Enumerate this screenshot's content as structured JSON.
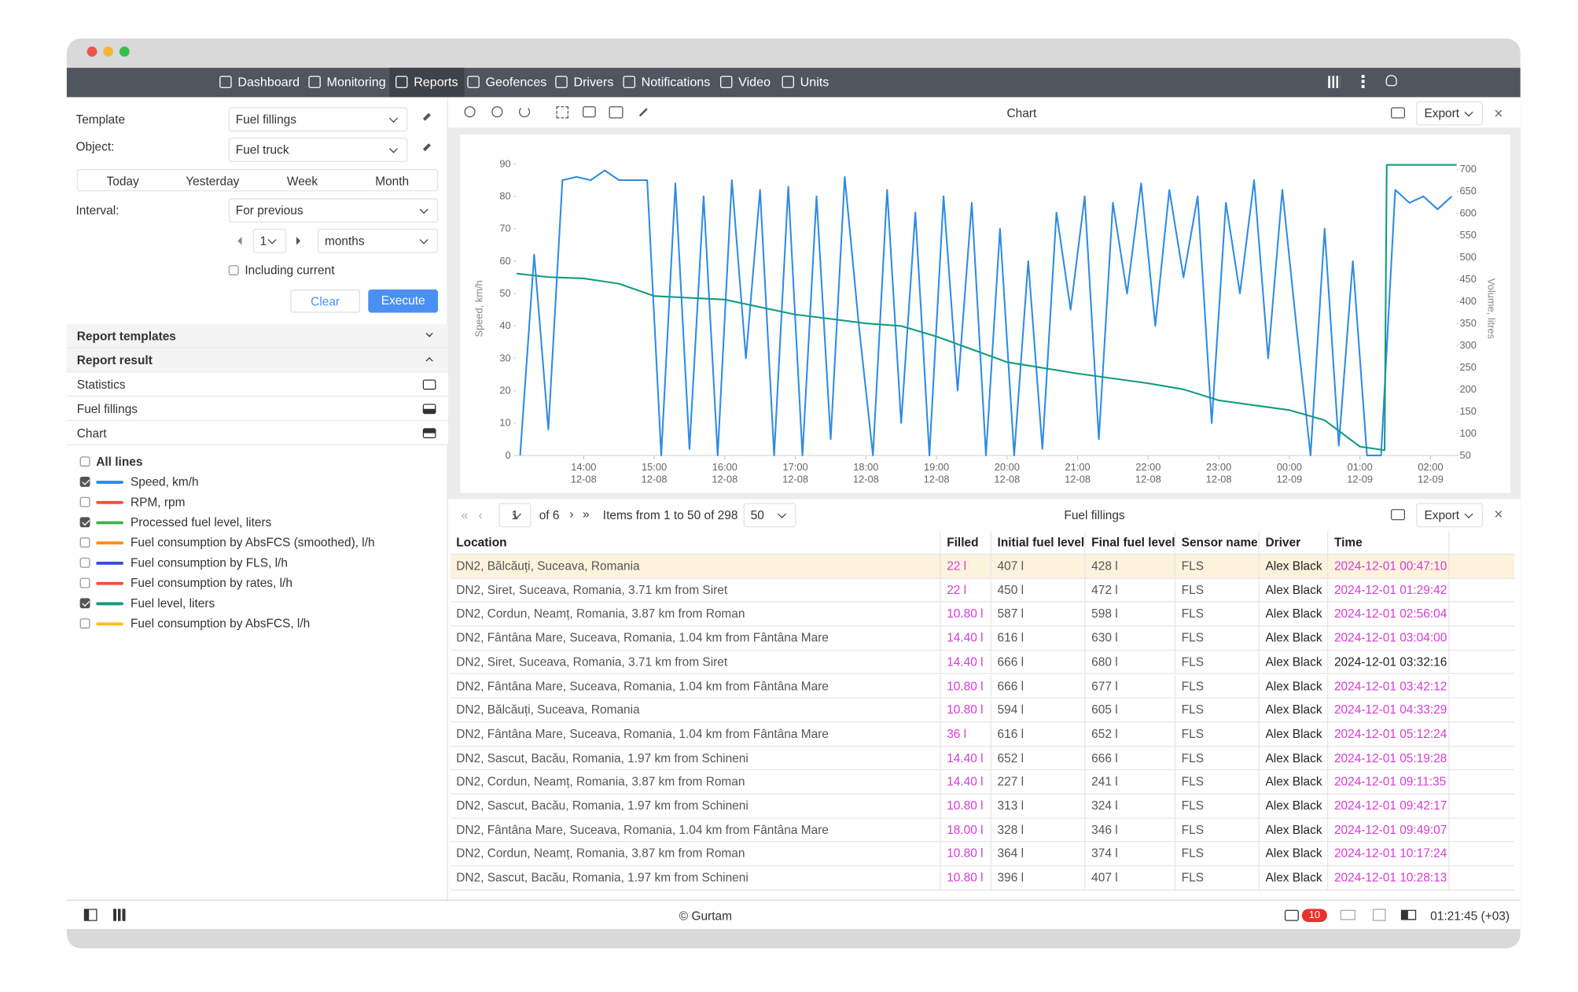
{
  "nav": {
    "items": [
      "Dashboard",
      "Monitoring",
      "Reports",
      "Geofences",
      "Drivers",
      "Notifications",
      "Video",
      "Units"
    ],
    "active": 2
  },
  "form": {
    "template_label": "Template",
    "template_value": "Fuel fillings",
    "object_label": "Object:",
    "object_value": "Fuel truck",
    "tabs": [
      "Today",
      "Yesterday",
      "Week",
      "Month"
    ],
    "interval_label": "Interval:",
    "interval_value": "For previous",
    "count": 1,
    "unit": "months",
    "including_current": "Including current",
    "clear": "Clear",
    "execute": "Execute"
  },
  "sections": [
    "Report templates",
    "Report result",
    "Statistics",
    "Fuel fillings",
    "Chart"
  ],
  "lines": {
    "all": "All lines",
    "items": [
      {
        "name": "Speed, km/h",
        "color": "#2e8be6",
        "checked": true
      },
      {
        "name": "RPM, rpm",
        "color": "#f0503c",
        "checked": false
      },
      {
        "name": "Processed fuel level, liters",
        "color": "#3cb44b",
        "checked": true
      },
      {
        "name": "Fuel consumption by AbsFCS (smoothed), l/h",
        "color": "#ff8c1a",
        "checked": false
      },
      {
        "name": "Fuel consumption by FLS, l/h",
        "color": "#3a4fd0",
        "checked": false
      },
      {
        "name": "Fuel consumption by rates, l/h",
        "color": "#f0503c",
        "checked": false
      },
      {
        "name": "Fuel level, liters",
        "color": "#129a80",
        "checked": true
      },
      {
        "name": "Fuel consumption by AbsFCS, l/h",
        "color": "#ffc21a",
        "checked": false
      }
    ]
  },
  "chart_data": {
    "type": "line",
    "title": "Chart",
    "ylabel": "Speed, km/h",
    "y2label": "Volume, litres",
    "xlim": [
      13.04,
      26.37
    ],
    "xticks": [
      {
        "value": 14,
        "label": "14:00",
        "date": "12-08"
      },
      {
        "value": 15,
        "label": "15:00",
        "date": "12-08"
      },
      {
        "value": 16,
        "label": "16:00",
        "date": "12-08"
      },
      {
        "value": 17,
        "label": "17:00",
        "date": "12-08"
      },
      {
        "value": 18,
        "label": "18:00",
        "date": "12-08"
      },
      {
        "value": 19,
        "label": "19:00",
        "date": "12-08"
      },
      {
        "value": 20,
        "label": "20:00",
        "date": "12-08"
      },
      {
        "value": 21,
        "label": "21:00",
        "date": "12-08"
      },
      {
        "value": 22,
        "label": "22:00",
        "date": "12-08"
      },
      {
        "value": 23,
        "label": "23:00",
        "date": "12-08"
      },
      {
        "value": 24,
        "label": "00:00",
        "date": "12-09"
      },
      {
        "value": 25,
        "label": "01:00",
        "date": "12-09"
      },
      {
        "value": 26,
        "label": "02:00",
        "date": "12-09"
      }
    ],
    "ylim": [
      0,
      90
    ],
    "yticks": [
      0,
      10,
      20,
      30,
      40,
      50,
      60,
      70,
      80,
      90
    ],
    "y2lim": [
      50,
      712
    ],
    "y2ticks": [
      50,
      100,
      150,
      200,
      250,
      300,
      350,
      400,
      450,
      500,
      550,
      600,
      650,
      700
    ],
    "series": [
      {
        "color": "#2e8be6",
        "x": [
          13.1,
          13.3,
          13.5,
          13.7,
          13.9,
          14.1,
          14.3,
          14.5,
          14.7,
          14.9,
          15.1,
          15.3,
          15.5,
          15.7,
          15.9,
          16.1,
          16.3,
          16.5,
          16.7,
          16.9,
          17.1,
          17.3,
          17.5,
          17.7,
          17.9,
          18.1,
          18.3,
          18.5,
          18.7,
          18.9,
          19.1,
          19.3,
          19.5,
          19.7,
          19.9,
          20.1,
          20.3,
          20.5,
          20.7,
          20.9,
          21.1,
          21.3,
          21.5,
          21.7,
          21.9,
          22.1,
          22.3,
          22.5,
          22.7,
          22.9,
          23.1,
          23.3,
          23.5,
          23.7,
          23.9,
          24.1,
          24.3,
          24.5,
          24.7,
          24.9,
          25.1,
          25.3,
          25.5,
          25.7,
          25.9,
          26.1,
          26.3
        ],
        "values": [
          0,
          62,
          8,
          85,
          86,
          85,
          88,
          85,
          85,
          85,
          0,
          84,
          2,
          80,
          0,
          85,
          30,
          82,
          0,
          83,
          0,
          80,
          5,
          86,
          40,
          0,
          82,
          10,
          75,
          0,
          80,
          20,
          78,
          0,
          70,
          0,
          60,
          2,
          75,
          45,
          80,
          5,
          78,
          50,
          84,
          40,
          82,
          55,
          80,
          10,
          78,
          50,
          85,
          30,
          82,
          40,
          0,
          70,
          3,
          60,
          0,
          0,
          82,
          78,
          80,
          76,
          80
        ]
      },
      {
        "color": "#129a80",
        "axis": "y2",
        "x": [
          13.05,
          13.5,
          14,
          14.5,
          15,
          16,
          17,
          17.5,
          18,
          18.5,
          19,
          20,
          21,
          22,
          22.5,
          23,
          24,
          24.5,
          25,
          25.35,
          25.38,
          26.37
        ],
        "values": [
          463,
          455,
          452,
          440,
          412,
          404,
          370,
          360,
          350,
          344,
          320,
          262,
          236,
          214,
          200,
          175,
          153,
          130,
          70,
          62,
          710,
          710
        ]
      }
    ]
  },
  "pager": {
    "page": 1,
    "of": "of 6",
    "items": "Items from 1 to 50 of 298",
    "per_page": 50
  },
  "table": {
    "title": "Fuel fillings",
    "export": "Export",
    "accent_color": "#d63bd6",
    "plain_time_rows": [
      4
    ],
    "columns": [
      "Location",
      "Filled",
      "Initial fuel level",
      "Final fuel level",
      "Sensor name",
      "Driver",
      "Time"
    ],
    "rows": [
      [
        "DN2, Bălcăuți, Suceava, Romania",
        "22 l",
        "407 l",
        "428 l",
        "FLS",
        "Alex Black",
        "2024-12-01 00:47:10"
      ],
      [
        "DN2, Siret, Suceava, Romania, 3.71 km from Siret",
        "22 l",
        "450 l",
        "472 l",
        "FLS",
        "Alex Black",
        "2024-12-01 01:29:42"
      ],
      [
        "DN2, Cordun, Neamț, Romania, 3.87 km from Roman",
        "10.80 l",
        "587 l",
        "598 l",
        "FLS",
        "Alex Black",
        "2024-12-01 02:56:04"
      ],
      [
        "DN2, Fântâna Mare, Suceava, Romania, 1.04 km from Fântâna Mare",
        "14.40 l",
        "616 l",
        "630 l",
        "FLS",
        "Alex Black",
        "2024-12-01 03:04:00"
      ],
      [
        "DN2, Siret, Suceava, Romania, 3.71 km from Siret",
        "14.40 l",
        "666 l",
        "680 l",
        "FLS",
        "Alex Black",
        "2024-12-01 03:32:16"
      ],
      [
        "DN2, Fântâna Mare, Suceava, Romania, 1.04 km from Fântâna Mare",
        "10.80 l",
        "666 l",
        "677 l",
        "FLS",
        "Alex Black",
        "2024-12-01 03:42:12"
      ],
      [
        "DN2, Bălcăuți, Suceava, Romania",
        "10.80 l",
        "594 l",
        "605 l",
        "FLS",
        "Alex Black",
        "2024-12-01 04:33:29"
      ],
      [
        "DN2, Fântâna Mare, Suceava, Romania, 1.04 km from Fântâna Mare",
        "36 l",
        "616 l",
        "652 l",
        "FLS",
        "Alex Black",
        "2024-12-01 05:12:24"
      ],
      [
        "DN2, Sascut, Bacău, Romania, 1.97 km from Schineni",
        "14.40 l",
        "652 l",
        "666 l",
        "FLS",
        "Alex Black",
        "2024-12-01 05:19:28"
      ],
      [
        "DN2, Cordun, Neamț, Romania, 3.87 km from Roman",
        "14.40 l",
        "227 l",
        "241 l",
        "FLS",
        "Alex Black",
        "2024-12-01 09:11:35"
      ],
      [
        "DN2, Sascut, Bacău, Romania, 1.97 km from Schineni",
        "10.80 l",
        "313 l",
        "324 l",
        "FLS",
        "Alex Black",
        "2024-12-01 09:42:17"
      ],
      [
        "DN2, Fântâna Mare, Suceava, Romania, 1.04 km from Fântâna Mare",
        "18.00 l",
        "328 l",
        "346 l",
        "FLS",
        "Alex Black",
        "2024-12-01 09:49:07"
      ],
      [
        "DN2, Cordun, Neamț, Romania, 3.87 km from Roman",
        "10.80 l",
        "364 l",
        "374 l",
        "FLS",
        "Alex Black",
        "2024-12-01 10:17:24"
      ],
      [
        "DN2, Sascut, Bacău, Romania, 1.97 km from Schineni",
        "10.80 l",
        "396 l",
        "407 l",
        "FLS",
        "Alex Black",
        "2024-12-01 10:28:13"
      ]
    ]
  },
  "status": {
    "copyright": "© Gurtam",
    "badge": 10,
    "clock": "01:21:45 (+03)"
  }
}
